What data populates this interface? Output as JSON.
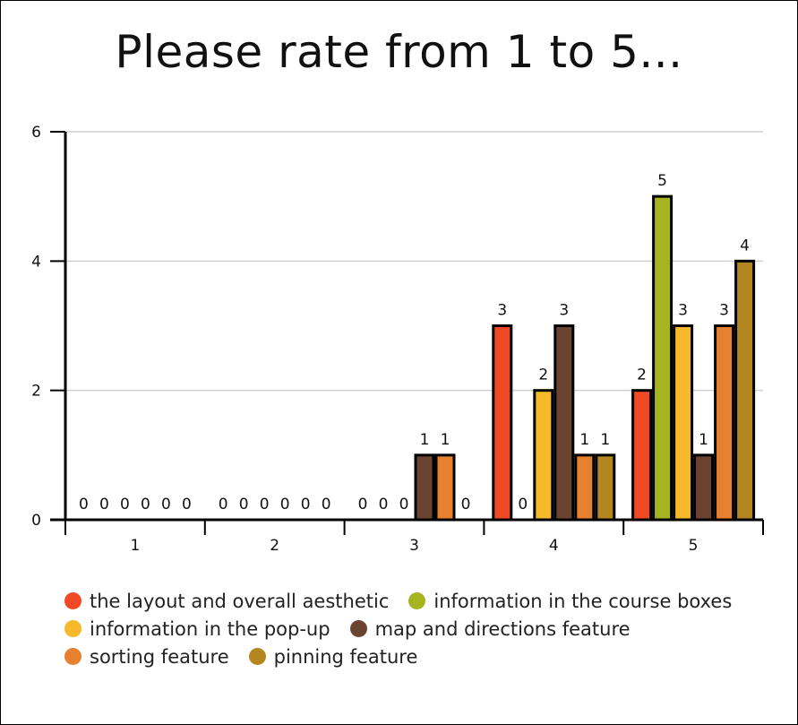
{
  "chart_data": {
    "type": "bar",
    "title": "Please rate from 1 to 5...",
    "categories": [
      "1",
      "2",
      "3",
      "4",
      "5"
    ],
    "ylim": [
      0,
      6
    ],
    "yticks": [
      0,
      2,
      4,
      6
    ],
    "grid": true,
    "legend_position": "bottom",
    "series": [
      {
        "name": "the layout and overall aesthetic",
        "color": "#f04a25",
        "values": [
          0,
          0,
          0,
          3,
          2
        ]
      },
      {
        "name": "information in the course boxes",
        "color": "#a5b41f",
        "values": [
          0,
          0,
          0,
          0,
          5
        ]
      },
      {
        "name": "information in the pop-up",
        "color": "#f6b92b",
        "values": [
          0,
          0,
          0,
          2,
          3
        ]
      },
      {
        "name": "map and directions feature",
        "color": "#6b4431",
        "values": [
          0,
          0,
          1,
          3,
          1
        ]
      },
      {
        "name": "sorting feature",
        "color": "#e8812f",
        "values": [
          0,
          0,
          1,
          1,
          3
        ]
      },
      {
        "name": "pinning feature",
        "color": "#b48620",
        "values": [
          0,
          0,
          0,
          1,
          4
        ]
      }
    ]
  }
}
